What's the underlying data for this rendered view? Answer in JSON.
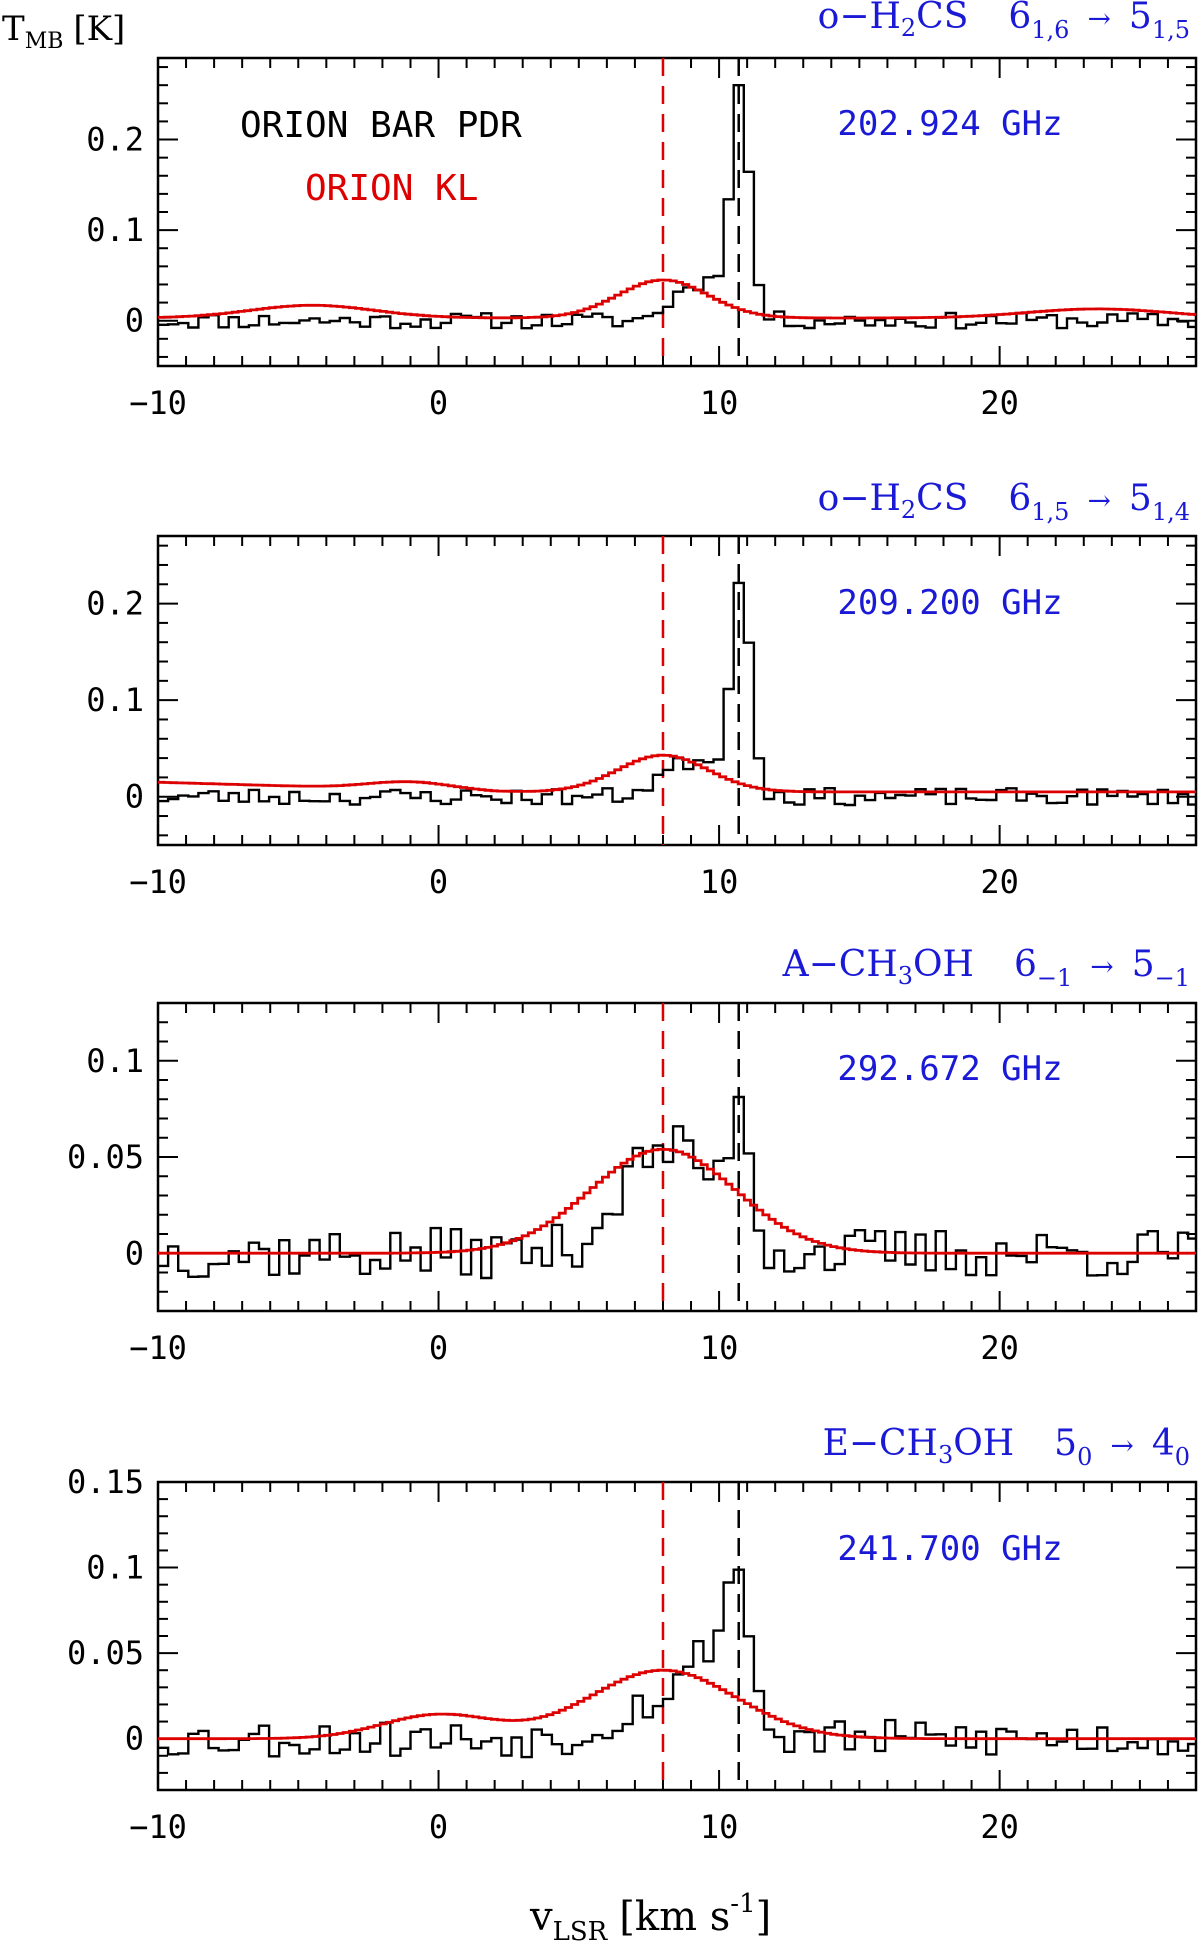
{
  "figure": {
    "ylabel_main": "T",
    "ylabel_sub": "MB",
    "ylabel_unit": "[K]",
    "xlabel_main": "v",
    "xlabel_sub": "LSR",
    "xlabel_unit_pre": "[km s",
    "xlabel_unit_sup": "-1",
    "xlabel_unit_post": "]",
    "legend_pdr": "ORION BAR PDR",
    "legend_kl": "ORION KL",
    "colors": {
      "obs": "#000000",
      "kl": "#dd0000",
      "label": "#1a1ad6",
      "kl_line": "#dd0000"
    }
  },
  "chart_data": [
    {
      "type": "line",
      "title_parts": {
        "prefix": "o−H",
        "sub1": "2",
        "mid": "CS",
        "upper_lhs": "6",
        "sub_lhs": "1,6",
        "arrow": "→",
        "upper_rhs": "5",
        "sub_rhs": "1,5"
      },
      "frequency": "202.924 GHz",
      "xlim": [
        -10,
        27
      ],
      "ylim": [
        -0.05,
        0.29
      ],
      "xticks": [
        -10,
        0,
        10,
        20
      ],
      "xtick_labels": [
        "−10",
        "0",
        "10",
        "20"
      ],
      "yticks": [
        0,
        0.1,
        0.2
      ],
      "ytick_labels": [
        "0",
        "0.1",
        "0.2"
      ],
      "vline_kl": 8.0,
      "vline_pdr": 10.7,
      "series": [
        {
          "name": "ORION BAR PDR",
          "style": "histogram",
          "peaks": [
            {
              "v": 10.75,
              "amp": 0.235,
              "w": 0.33
            },
            {
              "v": 9.8,
              "amp": 0.04,
              "w": 0.9
            },
            {
              "v": 8.6,
              "amp": 0.015,
              "w": 0.6
            }
          ],
          "noise": 0.008,
          "seed": 11
        },
        {
          "name": "ORION KL",
          "style": "histogram",
          "peaks": [
            {
              "v": 8.0,
              "amp": 0.042,
              "w": 1.6
            },
            {
              "v": -4.5,
              "amp": 0.014,
              "w": 2.2
            },
            {
              "v": 23.5,
              "amp": 0.01,
              "w": 2.5
            }
          ],
          "baseline": 0.003,
          "noise": 0
        }
      ]
    },
    {
      "type": "line",
      "title_parts": {
        "prefix": "o−H",
        "sub1": "2",
        "mid": "CS",
        "upper_lhs": "6",
        "sub_lhs": "1,5",
        "arrow": "→",
        "upper_rhs": "5",
        "sub_rhs": "1,4"
      },
      "frequency": "209.200 GHz",
      "xlim": [
        -10,
        27
      ],
      "ylim": [
        -0.05,
        0.27
      ],
      "xticks": [
        -10,
        0,
        10,
        20
      ],
      "xtick_labels": [
        "−10",
        "0",
        "10",
        "20"
      ],
      "yticks": [
        0,
        0.1,
        0.2
      ],
      "ytick_labels": [
        "0",
        "0.1",
        "0.2"
      ],
      "vline_kl": 8.0,
      "vline_pdr": 10.7,
      "series": [
        {
          "name": "ORION BAR PDR",
          "style": "histogram",
          "peaks": [
            {
              "v": 10.8,
              "amp": 0.21,
              "w": 0.33
            },
            {
              "v": 9.8,
              "amp": 0.035,
              "w": 0.9
            },
            {
              "v": 8.3,
              "amp": 0.02,
              "w": 0.8
            }
          ],
          "noise": 0.008,
          "seed": 23
        },
        {
          "name": "ORION KL",
          "style": "histogram",
          "peaks": [
            {
              "v": 8.0,
              "amp": 0.038,
              "w": 1.6
            },
            {
              "v": -1.0,
              "amp": 0.008,
              "w": 1.5
            }
          ],
          "baseline": 0.005,
          "tilt_left": 0.01,
          "noise": 0
        }
      ]
    },
    {
      "type": "line",
      "title_parts": {
        "prefix": "A−CH",
        "sub1": "3",
        "mid": "OH",
        "upper_lhs": "6",
        "sub_lhs": "−1",
        "arrow": "→",
        "upper_rhs": "5",
        "sub_rhs": "−1"
      },
      "frequency": "292.672 GHz",
      "xlim": [
        -10,
        27
      ],
      "ylim": [
        -0.03,
        0.13
      ],
      "xticks": [
        -10,
        0,
        10,
        20
      ],
      "xtick_labels": [
        "−10",
        "0",
        "10",
        "20"
      ],
      "yticks": [
        0,
        0.05,
        0.1
      ],
      "ytick_labels": [
        "0",
        "0.05",
        "0.1"
      ],
      "vline_kl": 8.0,
      "vline_pdr": 10.7,
      "series": [
        {
          "name": "ORION BAR PDR",
          "style": "histogram",
          "peaks": [
            {
              "v": 10.75,
              "amp": 0.07,
              "w": 0.35
            },
            {
              "v": 7.8,
              "amp": 0.05,
              "w": 1.4
            },
            {
              "v": 9.6,
              "amp": 0.02,
              "w": 0.9
            }
          ],
          "noise": 0.012,
          "seed": 37
        },
        {
          "name": "ORION KL",
          "style": "histogram",
          "peaks": [
            {
              "v": 8.0,
              "amp": 0.054,
              "w": 2.6
            }
          ],
          "baseline": 0.0,
          "noise": 0
        }
      ]
    },
    {
      "type": "line",
      "title_parts": {
        "prefix": "E−CH",
        "sub1": "3",
        "mid": "OH",
        "upper_lhs": "5",
        "sub_lhs": "0",
        "arrow": "→",
        "upper_rhs": "4",
        "sub_rhs": "0"
      },
      "frequency": "241.700 GHz",
      "xlim": [
        -10,
        27
      ],
      "ylim": [
        -0.03,
        0.15
      ],
      "xticks": [
        -10,
        0,
        10,
        20
      ],
      "xtick_labels": [
        "−10",
        "0",
        "10",
        "20"
      ],
      "yticks": [
        0,
        0.05,
        0.1,
        0.15
      ],
      "ytick_labels": [
        "0",
        "0.05",
        "0.1",
        "0.15"
      ],
      "vline_kl": 8.0,
      "vline_pdr": 10.7,
      "series": [
        {
          "name": "ORION BAR PDR",
          "style": "histogram",
          "peaks": [
            {
              "v": 10.7,
              "amp": 0.07,
              "w": 0.4
            },
            {
              "v": 9.8,
              "amp": 0.05,
              "w": 0.9
            },
            {
              "v": 7.5,
              "amp": 0.02,
              "w": 1.2
            }
          ],
          "noise": 0.01,
          "seed": 53
        },
        {
          "name": "ORION KL",
          "style": "histogram",
          "peaks": [
            {
              "v": 8.0,
              "amp": 0.04,
              "w": 2.6
            },
            {
              "v": 0.0,
              "amp": 0.014,
              "w": 2.0
            }
          ],
          "baseline": 0.0,
          "noise": 0
        }
      ]
    }
  ]
}
